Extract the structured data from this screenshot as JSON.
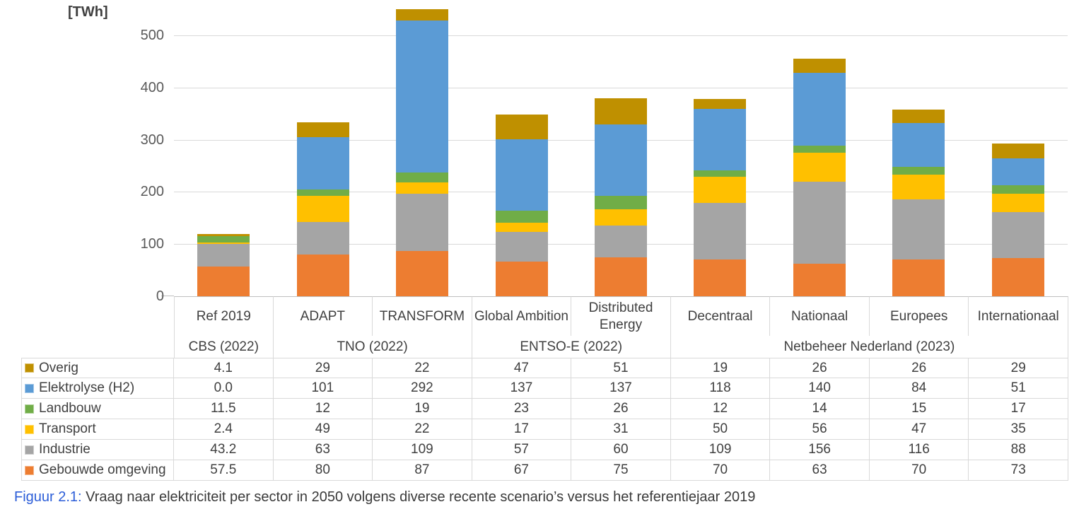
{
  "figure": {
    "caption_label": "Figuur 2.1:",
    "caption_text": "Vraag naar elektriciteit per sector in 2050 volgens diverse recente scenario’s versus het referentiejaar 2019"
  },
  "chart_data": {
    "type": "bar",
    "stacked": true,
    "title": "",
    "xlabel": "",
    "ylabel": "[TWh]",
    "ylim": [
      0,
      560
    ],
    "yticks": [
      0,
      100,
      200,
      300,
      400,
      500
    ],
    "grid": true,
    "legend_position": "table-left-column",
    "categories": [
      "Ref 2019",
      "ADAPT",
      "TRANSFORM",
      "Global Ambition",
      "Distributed Energy",
      "Decentraal",
      "Nationaal",
      "Europees",
      "Internationaal"
    ],
    "source_groups": [
      {
        "label": "CBS (2022)",
        "span": 1
      },
      {
        "label": "TNO (2022)",
        "span": 2
      },
      {
        "label": "ENTSO-E (2022)",
        "span": 2
      },
      {
        "label": "Netbeheer Nederland (2023)",
        "span": 4
      }
    ],
    "series": [
      {
        "name": "Overig",
        "color": "#BF9000",
        "values": [
          "4.1",
          "29",
          "22",
          "47",
          "51",
          "19",
          "26",
          "26",
          "29"
        ]
      },
      {
        "name": "Elektrolyse (H2)",
        "color": "#5B9BD5",
        "values": [
          "0.0",
          "101",
          "292",
          "137",
          "137",
          "118",
          "140",
          "84",
          "51"
        ]
      },
      {
        "name": "Landbouw",
        "color": "#70AD47",
        "values": [
          "11.5",
          "12",
          "19",
          "23",
          "26",
          "12",
          "14",
          "15",
          "17"
        ]
      },
      {
        "name": "Transport",
        "color": "#FFC000",
        "values": [
          "2.4",
          "49",
          "22",
          "17",
          "31",
          "50",
          "56",
          "47",
          "35"
        ]
      },
      {
        "name": "Industrie",
        "color": "#A5A5A5",
        "values": [
          "43.2",
          "63",
          "109",
          "57",
          "60",
          "109",
          "156",
          "116",
          "88"
        ]
      },
      {
        "name": "Gebouwde omgeving",
        "color": "#ED7D31",
        "values": [
          "57.5",
          "80",
          "87",
          "67",
          "75",
          "70",
          "63",
          "70",
          "73"
        ]
      }
    ],
    "stack_order_bottom_to_top": [
      "Gebouwde omgeving",
      "Industrie",
      "Transport",
      "Landbouw",
      "Elektrolyse (H2)",
      "Overig"
    ]
  }
}
